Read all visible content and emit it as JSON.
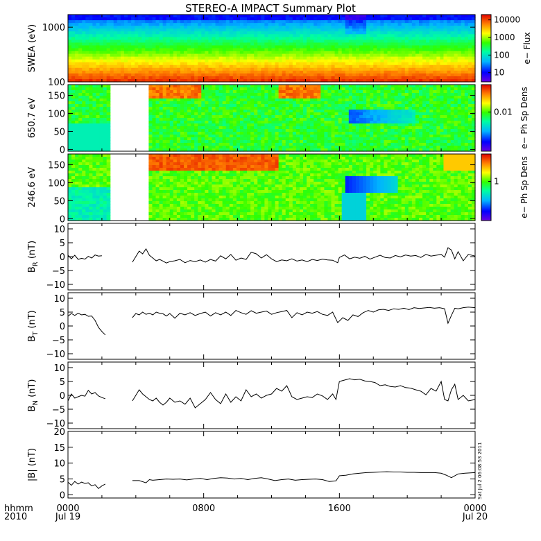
{
  "chart_data": {
    "type": "line",
    "title": "STEREO-A IMPACT Summary Plot",
    "x_axis": {
      "ticks": [
        {
          "time": "0000",
          "date": "Jul 19"
        },
        {
          "time": "0800",
          "date": ""
        },
        {
          "time": "1600",
          "date": ""
        },
        {
          "time": "0000",
          "date": "Jul 20"
        }
      ],
      "corner_label_top": "hhmm",
      "corner_label_bottom": "2010",
      "range_hours": [
        0,
        24
      ]
    },
    "data_gap_hours": [
      2.4,
      4.7
    ],
    "timestamp": "Sat Jul 2 06:08:53 2011",
    "panels": [
      {
        "type": "heatmap",
        "ylabel": "SWEA (eV)",
        "yscale": "log",
        "ylim": [
          100,
          1700
        ],
        "yticks": [
          100,
          1000
        ],
        "ytick_labels": [
          "100",
          "1000"
        ],
        "cbar_label": "e− Flux",
        "cbar_ticks": [
          10,
          100,
          1000,
          10000
        ],
        "cbar_tick_labels": [
          "10",
          "100",
          "1000",
          "10000"
        ],
        "cbar_scale": "log",
        "cbar_range": [
          3,
          20000
        ]
      },
      {
        "type": "heatmap",
        "ylabel": "650.7 eV",
        "ylim": [
          -5,
          180
        ],
        "yticks": [
          0,
          50,
          100,
          150
        ],
        "ytick_labels": [
          "0",
          "50",
          "100",
          "150"
        ],
        "cbar_label": "e− Ph Sp Dens",
        "cbar_ticks": [
          0.01
        ],
        "cbar_tick_labels": [
          "0.01"
        ],
        "cbar_scale": "log",
        "cbar_range": [
          0.001,
          0.05
        ]
      },
      {
        "type": "heatmap",
        "ylabel": "246.6 eV",
        "ylim": [
          -5,
          180
        ],
        "yticks": [
          0,
          50,
          100,
          150
        ],
        "ytick_labels": [
          "0",
          "50",
          "100",
          "150"
        ],
        "cbar_label": "e− Ph Sp Dens",
        "cbar_ticks": [
          1
        ],
        "cbar_tick_labels": [
          "1"
        ],
        "cbar_scale": "log",
        "cbar_range": [
          0.1,
          5
        ]
      },
      {
        "type": "line",
        "ylabel": "B",
        "ysub": "R",
        "yunit": " (nT)",
        "ylim": [
          -12,
          12
        ],
        "yticks": [
          -10,
          -5,
          0,
          5,
          10
        ],
        "ytick_labels": [
          "−10",
          "−5",
          "0",
          "5",
          "10"
        ],
        "series": [
          {
            "x": [
              0.0,
              0.2,
              0.4,
              0.6,
              0.8,
              1.0,
              1.2,
              1.4,
              1.6,
              1.8,
              2.0
            ],
            "y": [
              0.5,
              -0.8,
              0.5,
              -1.0,
              -0.6,
              -0.9,
              0.1,
              -0.5,
              0.6,
              0.2,
              0.3
            ]
          },
          {
            "x": [
              3.8,
              4.0,
              4.2,
              4.4,
              4.6,
              4.8,
              5.0,
              5.2,
              5.4,
              5.6,
              5.8,
              6.0,
              6.3,
              6.6,
              6.9,
              7.2,
              7.5,
              7.8,
              8.1,
              8.4,
              8.7,
              9.0,
              9.3,
              9.6,
              9.9,
              10.2,
              10.5,
              10.8,
              11.1,
              11.4,
              11.7,
              12.0,
              12.3,
              12.6,
              12.9,
              13.2,
              13.5,
              13.8,
              14.1,
              14.4,
              14.7,
              15.0,
              15.3,
              15.6,
              15.9,
              16.0,
              16.3,
              16.6,
              16.9,
              17.2,
              17.5,
              17.8,
              18.1,
              18.4,
              18.7,
              19.0,
              19.3,
              19.6,
              19.9,
              20.2,
              20.5,
              20.8,
              21.1,
              21.4,
              21.7,
              22.0,
              22.2,
              22.4,
              22.6,
              22.8,
              23.0,
              23.3,
              23.6,
              24.0
            ],
            "y": [
              -2.0,
              0.0,
              2.0,
              1.0,
              2.8,
              0.5,
              -0.5,
              -1.5,
              -1.0,
              -1.6,
              -2.3,
              -1.8,
              -1.5,
              -1.0,
              -2.2,
              -1.4,
              -1.8,
              -1.2,
              -2.0,
              -1.0,
              -1.6,
              0.3,
              -0.8,
              0.8,
              -1.3,
              -0.5,
              -1.0,
              1.6,
              1.0,
              -0.5,
              0.7,
              -0.8,
              -1.8,
              -1.2,
              -1.5,
              -0.8,
              -1.6,
              -1.2,
              -1.8,
              -1.0,
              -1.4,
              -0.9,
              -1.2,
              -1.3,
              -2.2,
              -0.3,
              0.6,
              -0.8,
              -0.2,
              -0.6,
              0.1,
              -0.9,
              -0.2,
              0.5,
              -0.3,
              -0.5,
              0.4,
              -0.1,
              0.6,
              0.2,
              0.4,
              -0.3,
              0.8,
              0.2,
              0.5,
              0.8,
              -0.2,
              3.2,
              2.4,
              -0.8,
              1.8,
              -1.5,
              0.8,
              0.2
            ]
          }
        ]
      },
      {
        "type": "line",
        "ylabel": "B",
        "ysub": "T",
        "yunit": " (nT)",
        "ylim": [
          -12,
          12
        ],
        "yticks": [
          -10,
          -5,
          0,
          5,
          10
        ],
        "ytick_labels": [
          "−10",
          "−5",
          "0",
          "5",
          "10"
        ],
        "series": [
          {
            "x": [
              0.0,
              0.2,
              0.4,
              0.6,
              0.8,
              1.0,
              1.2,
              1.4,
              1.6,
              1.8,
              2.0,
              2.2
            ],
            "y": [
              3.5,
              4.5,
              3.8,
              4.6,
              4.0,
              4.2,
              3.5,
              3.6,
              2.0,
              -0.5,
              -2.0,
              -3.2
            ]
          },
          {
            "x": [
              3.8,
              4.0,
              4.2,
              4.4,
              4.6,
              4.8,
              5.0,
              5.2,
              5.4,
              5.6,
              5.8,
              6.0,
              6.3,
              6.6,
              6.9,
              7.2,
              7.5,
              7.8,
              8.1,
              8.4,
              8.7,
              9.0,
              9.3,
              9.6,
              9.9,
              10.2,
              10.5,
              10.8,
              11.1,
              11.4,
              11.7,
              12.0,
              12.3,
              12.6,
              12.9,
              13.2,
              13.5,
              13.8,
              14.1,
              14.4,
              14.7,
              15.0,
              15.3,
              15.6,
              15.9,
              16.2,
              16.5,
              16.8,
              17.1,
              17.4,
              17.7,
              18.0,
              18.3,
              18.6,
              18.9,
              19.2,
              19.5,
              19.8,
              20.1,
              20.4,
              20.7,
              21.0,
              21.3,
              21.6,
              21.9,
              22.2,
              22.4,
              22.6,
              22.8,
              23.0,
              23.3,
              23.6,
              24.0
            ],
            "y": [
              3.0,
              4.5,
              4.0,
              5.0,
              4.2,
              4.6,
              4.0,
              5.0,
              4.6,
              4.4,
              3.6,
              4.5,
              2.8,
              4.6,
              4.0,
              4.8,
              3.8,
              4.5,
              5.0,
              3.6,
              4.8,
              4.0,
              5.0,
              3.8,
              5.6,
              4.8,
              4.2,
              5.5,
              4.6,
              5.0,
              5.4,
              4.2,
              4.8,
              5.2,
              5.6,
              3.0,
              4.8,
              4.0,
              5.0,
              4.6,
              5.2,
              4.2,
              3.8,
              5.0,
              1.2,
              3.0,
              2.0,
              4.0,
              3.4,
              4.8,
              5.6,
              5.0,
              5.8,
              6.0,
              5.6,
              6.2,
              6.0,
              6.4,
              5.9,
              6.6,
              6.3,
              6.5,
              6.7,
              6.4,
              6.6,
              6.2,
              1.0,
              3.8,
              6.4,
              6.2,
              6.6,
              6.8,
              6.6
            ]
          }
        ]
      },
      {
        "type": "line",
        "ylabel": "B",
        "ysub": "N",
        "yunit": " (nT)",
        "ylim": [
          -12,
          12
        ],
        "yticks": [
          -10,
          -5,
          0,
          5,
          10
        ],
        "ytick_labels": [
          "−10",
          "−5",
          "0",
          "5",
          "10"
        ],
        "series": [
          {
            "x": [
              0.0,
              0.2,
              0.4,
              0.6,
              0.8,
              1.0,
              1.2,
              1.4,
              1.6,
              1.8,
              2.0,
              2.2
            ],
            "y": [
              -2.0,
              0.5,
              -1.0,
              -0.5,
              0.0,
              -0.3,
              1.8,
              0.5,
              1.0,
              -0.2,
              -0.8,
              -1.2
            ]
          },
          {
            "x": [
              3.8,
              4.0,
              4.2,
              4.4,
              4.6,
              4.8,
              5.0,
              5.2,
              5.4,
              5.6,
              5.8,
              6.0,
              6.3,
              6.6,
              6.9,
              7.2,
              7.5,
              7.8,
              8.1,
              8.4,
              8.7,
              9.0,
              9.3,
              9.6,
              9.9,
              10.2,
              10.5,
              10.8,
              11.1,
              11.4,
              11.7,
              12.0,
              12.3,
              12.6,
              12.9,
              13.2,
              13.5,
              13.8,
              14.1,
              14.4,
              14.7,
              15.0,
              15.3,
              15.6,
              15.8,
              16.0,
              16.3,
              16.6,
              16.9,
              17.2,
              17.5,
              17.8,
              18.1,
              18.4,
              18.7,
              19.0,
              19.3,
              19.6,
              19.9,
              20.2,
              20.5,
              20.8,
              21.1,
              21.4,
              21.7,
              22.0,
              22.2,
              22.4,
              22.6,
              22.8,
              23.0,
              23.3,
              23.6,
              24.0
            ],
            "y": [
              -2.0,
              0.0,
              2.0,
              0.5,
              -0.5,
              -1.5,
              -2.0,
              -1.0,
              -2.5,
              -3.5,
              -2.5,
              -1.0,
              -2.5,
              -2.0,
              -3.2,
              -1.0,
              -4.5,
              -3.0,
              -1.5,
              1.0,
              -1.5,
              -3.0,
              0.5,
              -2.5,
              -0.5,
              -2.0,
              2.0,
              -0.5,
              0.5,
              -1.0,
              0.0,
              0.5,
              2.5,
              1.5,
              3.5,
              -0.5,
              -1.5,
              -1.0,
              -0.5,
              -0.8,
              0.5,
              -0.2,
              -1.5,
              0.5,
              -1.5,
              5.0,
              5.5,
              6.0,
              5.6,
              5.8,
              5.2,
              5.0,
              4.6,
              3.5,
              3.8,
              3.2,
              3.0,
              3.5,
              2.8,
              2.6,
              2.0,
              1.5,
              0.2,
              2.5,
              1.5,
              5.0,
              -1.5,
              -2.0,
              2.0,
              4.0,
              -1.5,
              0.0,
              -2.0,
              -1.5
            ]
          }
        ]
      },
      {
        "type": "line",
        "ylabel": "|B|",
        "ysub": "",
        "yunit": " (nT)",
        "ylim": [
          -1,
          20
        ],
        "yticks": [
          0,
          5,
          10,
          15,
          20
        ],
        "ytick_labels": [
          "0",
          "5",
          "10",
          "15",
          "20"
        ],
        "series": [
          {
            "x": [
              0.0,
              0.2,
              0.4,
              0.6,
              0.8,
              1.0,
              1.2,
              1.4,
              1.6,
              1.8,
              2.0,
              2.2
            ],
            "y": [
              4.0,
              3.0,
              4.2,
              3.4,
              4.0,
              3.6,
              3.8,
              2.8,
              3.2,
              2.0,
              2.8,
              3.4
            ]
          },
          {
            "x": [
              3.8,
              4.2,
              4.6,
              4.8,
              5.0,
              5.4,
              5.8,
              6.2,
              6.6,
              7.0,
              7.4,
              7.8,
              8.2,
              8.6,
              9.0,
              9.4,
              9.8,
              10.2,
              10.6,
              11.0,
              11.4,
              11.8,
              12.2,
              12.6,
              13.0,
              13.4,
              13.8,
              14.2,
              14.6,
              15.0,
              15.4,
              15.8,
              16.0,
              16.4,
              16.8,
              17.2,
              17.6,
              18.0,
              18.4,
              18.8,
              19.2,
              19.6,
              20.0,
              20.4,
              20.8,
              21.2,
              21.6,
              22.0,
              22.3,
              22.6,
              23.0,
              23.4,
              24.0
            ],
            "y": [
              4.5,
              4.5,
              3.8,
              4.8,
              4.6,
              4.8,
              5.0,
              4.9,
              5.0,
              4.7,
              5.0,
              5.2,
              4.8,
              5.2,
              5.4,
              5.3,
              5.0,
              5.2,
              4.8,
              5.2,
              5.4,
              5.0,
              4.5,
              4.8,
              5.0,
              4.6,
              4.8,
              4.9,
              5.0,
              4.8,
              4.2,
              4.4,
              6.0,
              6.2,
              6.6,
              6.8,
              7.0,
              7.1,
              7.2,
              7.3,
              7.2,
              7.2,
              7.1,
              7.1,
              7.0,
              7.0,
              7.0,
              6.8,
              6.2,
              5.4,
              6.6,
              6.8,
              7.0
            ]
          }
        ]
      }
    ]
  }
}
